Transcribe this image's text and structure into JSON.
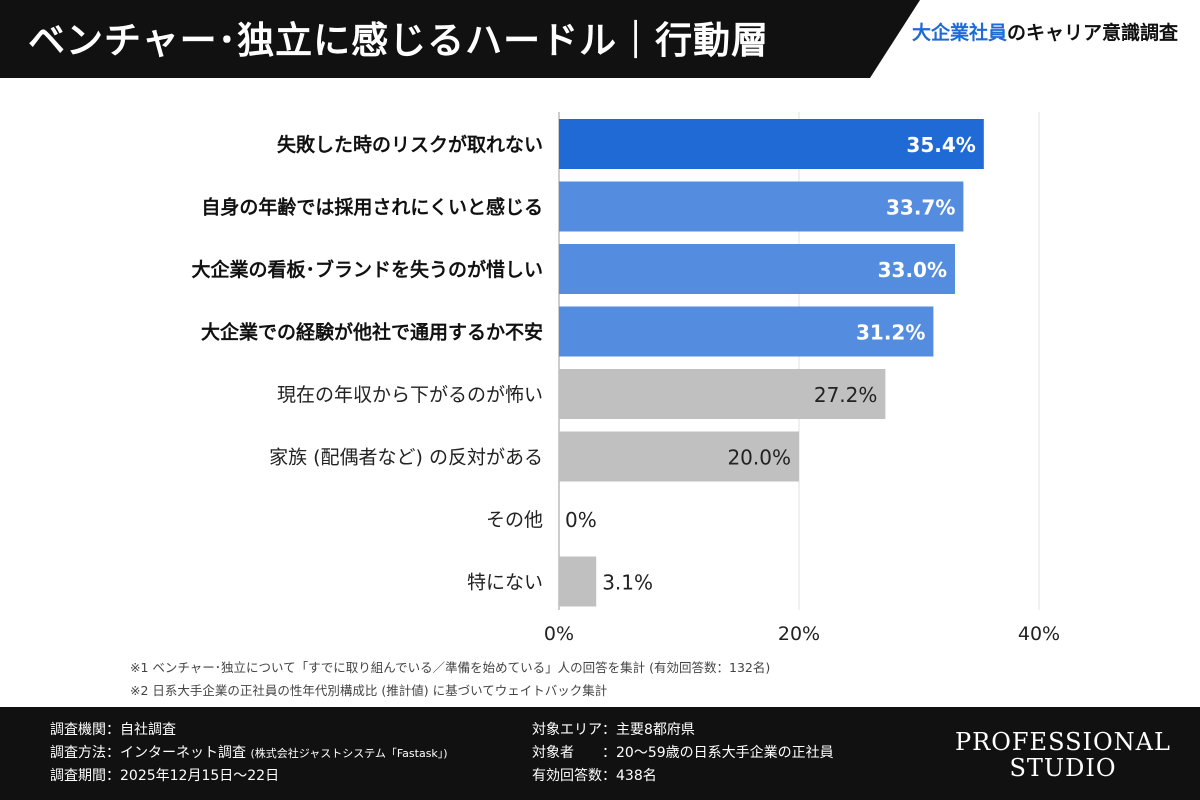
{
  "header": {
    "title": "ベンチャー･独立に感じるハードル｜行動層",
    "brand_highlight": "大企業社員",
    "brand_rest": "のキャリア意識調査"
  },
  "chart_data": {
    "type": "bar",
    "orientation": "horizontal",
    "categories": [
      "失敗した時のリスクが取れない",
      "自身の年齢では採用されにくいと感じる",
      "大企業の看板･ブランドを失うのが惜しい",
      "大企業での経験が他社で通用するか不安",
      "現在の年収から下がるのが怖い",
      "家族 (配偶者など) の反対がある",
      "その他",
      "特にない"
    ],
    "values": [
      35.4,
      33.7,
      33.0,
      31.2,
      27.2,
      20.0,
      0,
      3.1
    ],
    "value_labels": [
      "35.4%",
      "33.7%",
      "33.0%",
      "31.2%",
      "27.2%",
      "20.0%",
      "0%",
      "3.1%"
    ],
    "highlight": [
      true,
      true,
      true,
      true,
      false,
      false,
      false,
      false
    ],
    "colors": {
      "top": "#1f6ad4",
      "highlight": "#548ddf",
      "other": "#c0c0c0"
    },
    "xlim": [
      0,
      40
    ],
    "xticks": [
      "0%",
      "20%",
      "40%"
    ],
    "grid": true
  },
  "notes": [
    "※1 ベンチャー･独立について「すでに取り組んでいる／準備を始めている」人の回答を集計 (有効回答数：132名)",
    "※2 日系大手企業の正社員の性年代別構成比 (推計値) に基づいてウェイトバック集計"
  ],
  "footer": {
    "agency": "調査機関：自社調査",
    "method": "調査方法：インターネット調査",
    "method_sub": "(株式会社ジャストシステム「Fastask」)",
    "period": "調査期間：2025年12月15日～22日",
    "area": "対象エリア：主要8都府県",
    "target": "対象者　　：20～59歳の日系大手企業の正社員",
    "responses": "有効回答数：438名",
    "logo_line1": "PROFESSIONAL",
    "logo_line2": "STUDIO"
  }
}
